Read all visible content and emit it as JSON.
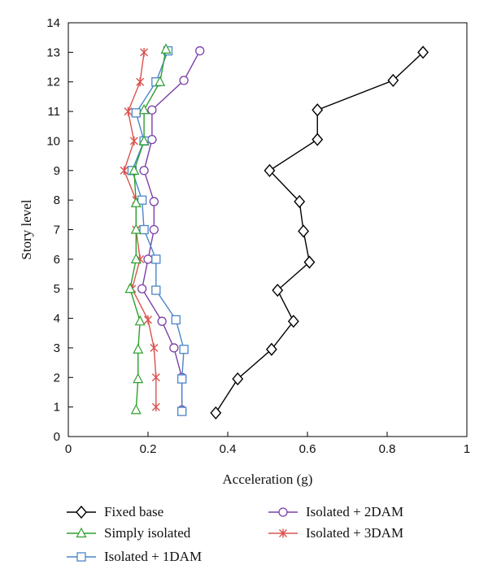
{
  "chart_data": {
    "type": "line",
    "title": "",
    "xlabel": "Acceleration (g)",
    "ylabel": "Story level",
    "xlim": [
      0,
      1
    ],
    "ylim": [
      0,
      14
    ],
    "x_ticks": [
      "0",
      "0.2",
      "0.4",
      "0.6",
      "0.8",
      "1"
    ],
    "y_ticks": [
      "0",
      "1",
      "2",
      "3",
      "4",
      "5",
      "6",
      "7",
      "8",
      "9",
      "10",
      "11",
      "12",
      "13",
      "14"
    ],
    "grid": false,
    "legend_placement": "bottom",
    "series": [
      {
        "name": "Fixed base",
        "color": "#000000",
        "marker": "diamond",
        "x": [
          0.37,
          0.425,
          0.51,
          0.565,
          0.525,
          0.605,
          0.59,
          0.58,
          0.505,
          0.625,
          0.625,
          0.815,
          0.89
        ],
        "y": [
          0.8,
          1.95,
          2.95,
          3.9,
          4.95,
          5.9,
          6.95,
          7.95,
          9.0,
          10.05,
          11.05,
          12.05,
          13.0
        ]
      },
      {
        "name": "Simply isolated",
        "color": "#2ca02c",
        "marker": "triangle",
        "x": [
          0.17,
          0.175,
          0.175,
          0.18,
          0.155,
          0.17,
          0.17,
          0.17,
          0.165,
          0.19,
          0.19,
          0.23,
          0.245
        ],
        "y": [
          0.9,
          1.95,
          2.95,
          3.9,
          5.0,
          6.0,
          7.0,
          7.9,
          9.0,
          10.0,
          11.05,
          12.0,
          13.1
        ]
      },
      {
        "name": "Isolated + 1DAM",
        "color": "#4a86c8",
        "marker": "square",
        "x": [
          0.285,
          0.285,
          0.29,
          0.27,
          0.22,
          0.22,
          0.19,
          0.185,
          0.16,
          0.19,
          0.17,
          0.22,
          0.25
        ],
        "y": [
          0.85,
          1.95,
          2.95,
          3.95,
          4.95,
          6.0,
          7.0,
          8.0,
          9.0,
          10.0,
          10.95,
          12.0,
          13.05
        ]
      },
      {
        "name": "Isolated + 2DAM",
        "color": "#7b3fa8",
        "marker": "circle",
        "x": [
          0.285,
          0.285,
          0.265,
          0.235,
          0.185,
          0.2,
          0.215,
          0.215,
          0.19,
          0.21,
          0.21,
          0.29,
          0.33
        ],
        "y": [
          0.9,
          2.0,
          3.0,
          3.9,
          5.0,
          6.0,
          7.0,
          7.95,
          9.0,
          10.05,
          11.05,
          12.05,
          13.05
        ]
      },
      {
        "name": "Isolated + 3DAM",
        "color": "#d9534f",
        "marker": "star",
        "x": [
          0.22,
          0.22,
          0.215,
          0.2,
          0.16,
          0.18,
          0.17,
          0.17,
          0.14,
          0.165,
          0.15,
          0.18,
          0.19
        ],
        "y": [
          1.0,
          2.0,
          3.0,
          3.95,
          5.0,
          6.0,
          7.0,
          8.0,
          9.0,
          10.0,
          11.0,
          12.0,
          13.0
        ]
      }
    ]
  }
}
